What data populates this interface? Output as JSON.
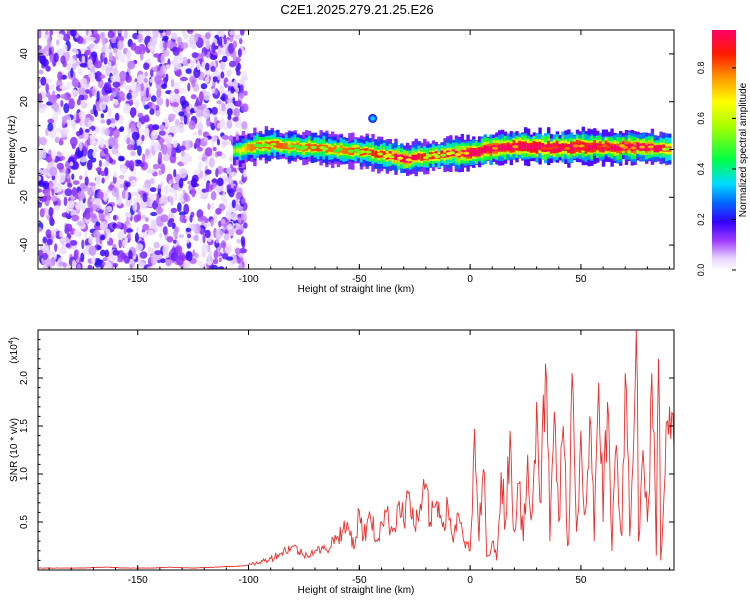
{
  "title": "C2E1.2025.279.21.25.E26",
  "chart_data": [
    {
      "type": "heatmap",
      "title": "C2E1.2025.279.21.25.E26",
      "xlabel": "Height of straight line (km)",
      "ylabel": "Frequency (Hz)",
      "xlim": [
        -195,
        92
      ],
      "ylim": [
        -50,
        50
      ],
      "xticks": [
        -150,
        -100,
        -50,
        0,
        50
      ],
      "xtick_labels": [
        "-150",
        "-100",
        "-50",
        "0",
        "50"
      ],
      "yticks": [
        -40,
        -20,
        0,
        20,
        40
      ],
      "ytick_labels": [
        "-40",
        "-20",
        "0",
        "20",
        "40"
      ],
      "colorbar": {
        "label": "Normalized spectral amplitude",
        "range": [
          0.0,
          0.95
        ],
        "ticks": [
          0.0,
          0.2,
          0.4,
          0.6,
          0.8
        ],
        "tick_labels": [
          "0.0",
          "0.2",
          "0.4",
          "0.6",
          "0.8"
        ]
      },
      "noise_region_x": [
        -195,
        -105
      ],
      "blob": {
        "x": -44,
        "y": 13
      },
      "ridge": {
        "x": [
          -107,
          -100,
          -90,
          -80,
          -70,
          -60,
          -50,
          -40,
          -30,
          -20,
          -10,
          0,
          10,
          20,
          30,
          40,
          50,
          60,
          70,
          80,
          90
        ],
        "y": [
          -1,
          1,
          2,
          1,
          1,
          0,
          -1,
          -2,
          -4,
          -3,
          -2,
          -1,
          0,
          1,
          1,
          1,
          1,
          1,
          1,
          1,
          0
        ],
        "amplitude": [
          0.3,
          0.55,
          0.6,
          0.55,
          0.6,
          0.55,
          0.6,
          0.65,
          0.8,
          0.6,
          0.7,
          0.9,
          0.85,
          0.9,
          0.95,
          0.95,
          0.9,
          0.9,
          0.85,
          0.8,
          0.6
        ]
      }
    },
    {
      "type": "line",
      "xlabel": "Height of straight line (km)",
      "ylabel": "SNR (10 * v/v)",
      "multiplier_label": "(x10",
      "multiplier_exp": "4",
      "xlim": [
        -195,
        92
      ],
      "ylim": [
        0,
        2.5
      ],
      "xticks": [
        -150,
        -100,
        -50,
        0,
        50
      ],
      "xtick_labels": [
        "-150",
        "-100",
        "-50",
        "0",
        "50"
      ],
      "yticks": [
        0.5,
        1.0,
        1.5,
        2.0
      ],
      "ytick_labels": [
        "0.5",
        "1.0",
        "1.5",
        "2.0"
      ],
      "series": [
        {
          "name": "SNR",
          "color": "#e8312f",
          "x": [
            -195,
            -185,
            -175,
            -165,
            -155,
            -145,
            -135,
            -125,
            -115,
            -105,
            -100,
            -95,
            -90,
            -85,
            -80,
            -75,
            -70,
            -65,
            -60,
            -55,
            -52,
            -50,
            -48,
            -45,
            -42,
            -40,
            -38,
            -35,
            -32,
            -30,
            -28,
            -25,
            -22,
            -20,
            -18,
            -15,
            -12,
            -10,
            -8,
            -5,
            -3,
            0,
            1,
            2,
            4,
            6,
            8,
            10,
            12,
            14,
            16,
            18,
            20,
            22,
            24,
            26,
            28,
            30,
            32,
            34,
            36,
            38,
            40,
            42,
            44,
            46,
            48,
            50,
            52,
            54,
            56,
            58,
            60,
            62,
            64,
            66,
            68,
            70,
            72,
            74,
            75,
            76,
            78,
            80,
            82,
            84,
            85,
            86,
            88,
            90,
            92
          ],
          "y": [
            0.02,
            0.02,
            0.02,
            0.03,
            0.02,
            0.02,
            0.03,
            0.02,
            0.03,
            0.04,
            0.05,
            0.08,
            0.12,
            0.18,
            0.25,
            0.15,
            0.2,
            0.22,
            0.35,
            0.45,
            0.25,
            0.62,
            0.35,
            0.55,
            0.3,
            0.5,
            0.6,
            0.4,
            0.72,
            0.5,
            0.8,
            0.45,
            0.62,
            0.9,
            0.5,
            0.72,
            0.5,
            0.66,
            0.35,
            0.55,
            0.3,
            0.2,
            0.6,
            1.47,
            0.3,
            1.05,
            0.15,
            0.3,
            0.1,
            1.02,
            0.5,
            1.45,
            0.4,
            0.9,
            0.3,
            1.2,
            0.6,
            1.75,
            0.7,
            2.15,
            0.3,
            1.65,
            0.5,
            1.5,
            0.25,
            2.05,
            0.4,
            1.45,
            0.6,
            1.6,
            0.3,
            1.95,
            0.5,
            1.75,
            0.2,
            1.3,
            0.4,
            2.05,
            0.35,
            1.5,
            2.5,
            0.3,
            1.25,
            0.5,
            2.05,
            0.15,
            2.2,
            0.1,
            1.0,
            1.7,
            1.25
          ]
        }
      ]
    }
  ]
}
